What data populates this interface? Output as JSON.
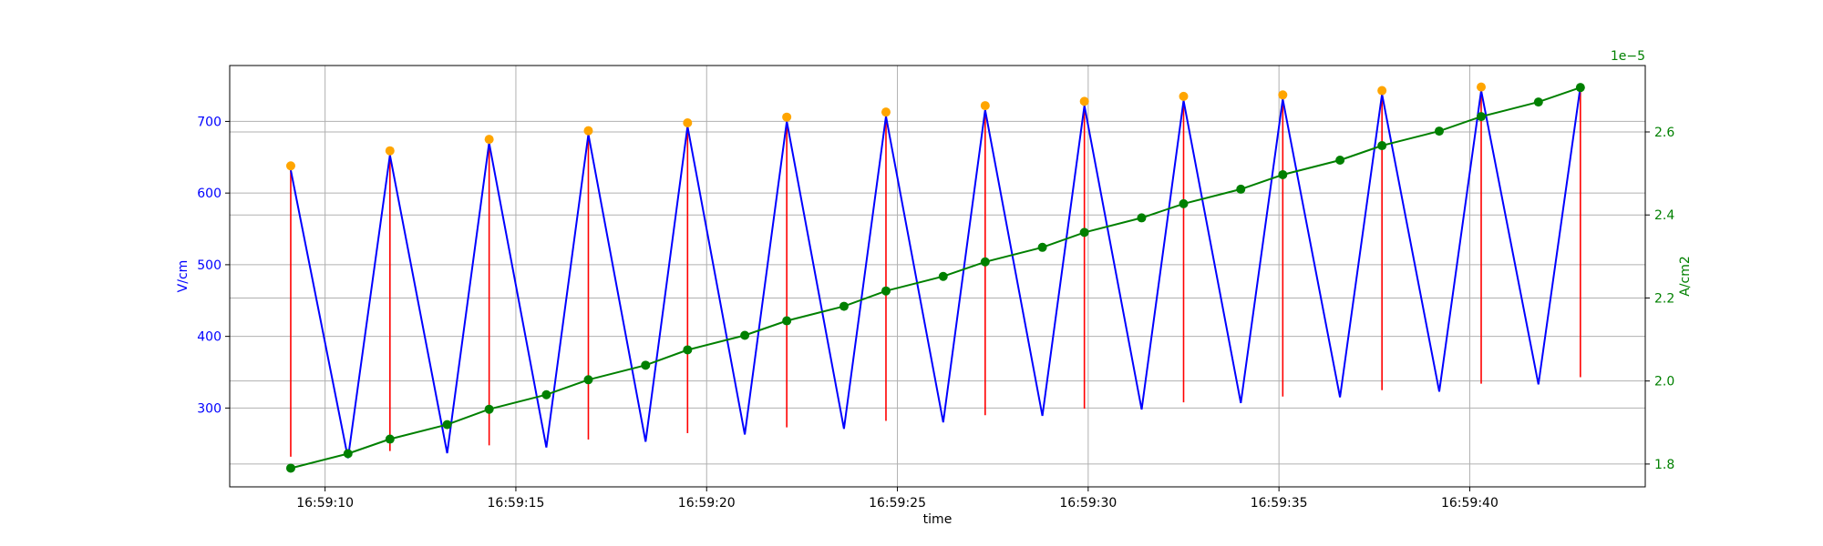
{
  "chart_data": {
    "type": "line",
    "xlabel": "time",
    "ylabel_left": "V/cm",
    "ylabel_right": "A/cm2",
    "right_axis_multiplier": "1e−5",
    "grid": true,
    "x_unit": "seconds after 16:59:00",
    "x_ticks": [
      {
        "value": 10,
        "label": "16:59:10"
      },
      {
        "value": 15,
        "label": "16:59:15"
      },
      {
        "value": 20,
        "label": "16:59:20"
      },
      {
        "value": 25,
        "label": "16:59:25"
      },
      {
        "value": 30,
        "label": "16:59:30"
      },
      {
        "value": 35,
        "label": "16:59:35"
      },
      {
        "value": 40,
        "label": "16:59:40"
      }
    ],
    "xlim": [
      7.5,
      44.6
    ],
    "left_axis": {
      "ylim": [
        190,
        778
      ],
      "ticks": [
        300,
        400,
        500,
        600,
        700
      ],
      "color": "#0000ff"
    },
    "right_axis": {
      "ylim": [
        1.745,
        2.76
      ],
      "ticks": [
        "1.8",
        "2.0",
        "2.2",
        "2.4",
        "2.6"
      ],
      "color": "#008000"
    },
    "series": [
      {
        "axis": "left",
        "kind": "line",
        "color": "#0000ff",
        "x": [
          9.1,
          10.6,
          11.7,
          13.2,
          14.3,
          15.8,
          16.9,
          18.4,
          19.5,
          21.0,
          22.1,
          23.6,
          24.7,
          26.2,
          27.3,
          28.8,
          29.9,
          31.4,
          32.5,
          34.0,
          35.1,
          36.6,
          37.7,
          39.2,
          40.3,
          41.8,
          42.9
        ],
        "values": [
          632,
          230,
          653,
          237,
          670,
          245,
          682,
          253,
          693,
          263,
          700,
          271,
          707,
          280,
          716,
          289,
          722,
          298,
          729,
          307,
          731,
          315,
          738,
          323,
          743,
          333,
          748
        ]
      },
      {
        "axis": "left",
        "kind": "scatter",
        "color": "#ffa500",
        "x": [
          9.1,
          11.7,
          14.3,
          16.9,
          19.5,
          22.1,
          24.7,
          27.3,
          29.9,
          32.5,
          35.1,
          37.7,
          40.3
        ],
        "values": [
          638,
          659,
          675,
          687,
          698,
          706,
          713,
          722,
          728,
          735,
          737,
          743,
          748
        ]
      },
      {
        "axis": "left",
        "kind": "vlines",
        "color": "#ff0000",
        "x": [
          9.1,
          11.7,
          14.3,
          16.9,
          19.5,
          22.1,
          24.7,
          27.3,
          29.9,
          32.5,
          35.1,
          37.7,
          40.3,
          42.9
        ],
        "low": [
          232,
          240,
          248,
          256,
          265,
          273,
          282,
          290,
          299,
          308,
          316,
          325,
          334,
          343
        ],
        "high": [
          632,
          653,
          670,
          682,
          693,
          700,
          707,
          716,
          722,
          729,
          731,
          738,
          743,
          748
        ]
      },
      {
        "axis": "right",
        "kind": "line-markers",
        "color": "#008000",
        "x": [
          9.1,
          10.6,
          11.7,
          13.2,
          14.3,
          15.8,
          16.9,
          18.4,
          19.5,
          21.0,
          22.1,
          23.6,
          24.7,
          26.2,
          27.3,
          28.8,
          29.9,
          31.4,
          32.5,
          34.0,
          35.1,
          36.6,
          37.7,
          39.2,
          40.3,
          41.8,
          42.9
        ],
        "values": [
          1.79,
          1.825,
          1.86,
          1.895,
          1.932,
          1.967,
          2.003,
          2.038,
          2.075,
          2.11,
          2.145,
          2.18,
          2.217,
          2.252,
          2.287,
          2.322,
          2.358,
          2.393,
          2.427,
          2.462,
          2.497,
          2.532,
          2.567,
          2.602,
          2.637,
          2.672,
          2.707
        ]
      }
    ]
  }
}
